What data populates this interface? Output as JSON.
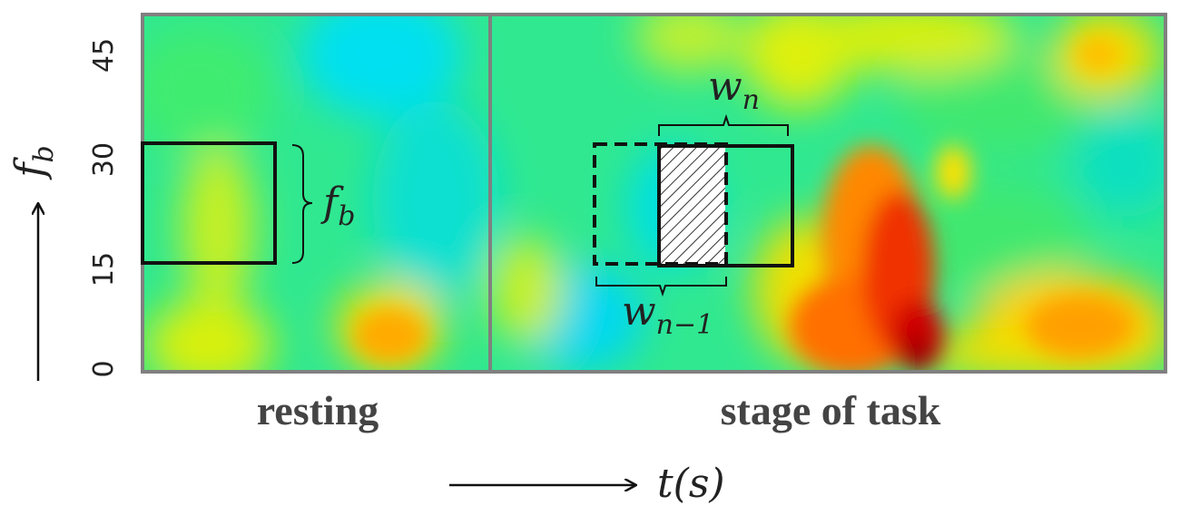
{
  "y_axis": {
    "symbol": "f",
    "subscript": "b",
    "ticks": [
      "0",
      "15",
      "30",
      "45"
    ]
  },
  "x_axis": {
    "label": "t(s)"
  },
  "segments": {
    "resting": "resting",
    "task": "stage of task"
  },
  "annotations": {
    "band_label_symbol": "f",
    "band_label_subscript": "b",
    "window_current_symbol": "w",
    "window_current_subscript": "n",
    "window_previous_symbol": "w",
    "window_previous_subscript": "n−1"
  },
  "colors": {
    "frame": "#808080",
    "box": "#111111",
    "hot": "#e60000",
    "warm": "#ff9900",
    "mid": "#ffee00",
    "cool": "#00e8a0",
    "cold": "#00d8f0"
  }
}
